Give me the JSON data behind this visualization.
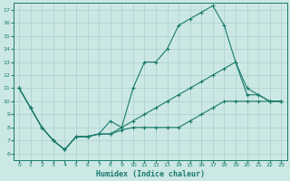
{
  "background_color": "#cce8e4",
  "grid_color": "#aacfcc",
  "line_color": "#1a7a6e",
  "xlabel": "Humidex (Indice chaleur)",
  "xlim": [
    -0.5,
    23.5
  ],
  "ylim": [
    5.5,
    17.5
  ],
  "xticks": [
    0,
    1,
    2,
    3,
    4,
    5,
    6,
    7,
    8,
    9,
    10,
    11,
    12,
    13,
    14,
    15,
    16,
    17,
    18,
    19,
    20,
    21,
    22,
    23
  ],
  "yticks": [
    6,
    7,
    8,
    9,
    10,
    11,
    12,
    13,
    14,
    15,
    16,
    17
  ],
  "line1_x": [
    0,
    1,
    2,
    3,
    4,
    5,
    6,
    7,
    8,
    9,
    10,
    11,
    12,
    13,
    14,
    15,
    16,
    17,
    18,
    19,
    20,
    21,
    22,
    23
  ],
  "line1_y": [
    11,
    9.5,
    8,
    7,
    6.3,
    7.3,
    7.3,
    7.5,
    7.5,
    8,
    8.5,
    9,
    9.5,
    10,
    10.5,
    11,
    11.5,
    12,
    12.5,
    13,
    10.5,
    10.5,
    10,
    10
  ],
  "line2_x": [
    0,
    1,
    2,
    3,
    4,
    5,
    6,
    7,
    8,
    9,
    10,
    11,
    12,
    13,
    14,
    15,
    16,
    17,
    18,
    19,
    20,
    21,
    22,
    23
  ],
  "line2_y": [
    11,
    9.5,
    8,
    7,
    6.3,
    7.3,
    7.3,
    7.5,
    8.5,
    8,
    11,
    13,
    13,
    14,
    15.8,
    16.3,
    16.8,
    17.3,
    15.8,
    13,
    11,
    10.5,
    10,
    10
  ],
  "line3_x": [
    0,
    1,
    2,
    3,
    4,
    5,
    6,
    7,
    8,
    9,
    10,
    11,
    12,
    13,
    14,
    15,
    16,
    17,
    18,
    19,
    20,
    21,
    22,
    23
  ],
  "line3_y": [
    11,
    9.5,
    8,
    7,
    6.3,
    7.3,
    7.3,
    7.5,
    7.5,
    7.8,
    8.0,
    8.0,
    8.0,
    8.0,
    8.0,
    8.5,
    9.0,
    9.5,
    10.0,
    10.0,
    10.0,
    10.0,
    10.0,
    10.0
  ]
}
